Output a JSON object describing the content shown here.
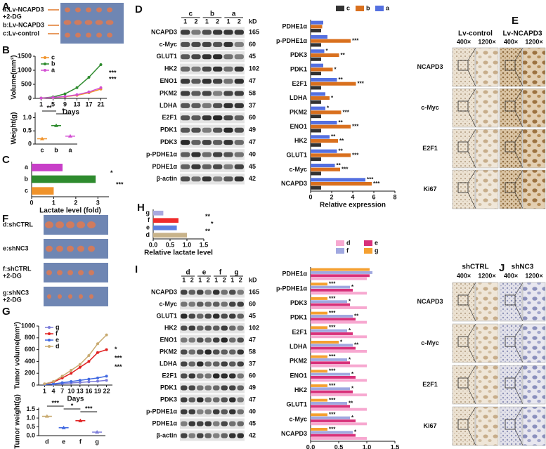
{
  "letters": [
    "A",
    "B",
    "C",
    "D",
    "E",
    "F",
    "G",
    "H",
    "I",
    "J"
  ],
  "photos": [
    {
      "labels": [
        [
          "a:Lv-NCAPD3",
          "+2-DG"
        ],
        [
          "b:Lv-NCAPD3"
        ],
        [
          "c:Lv-control"
        ]
      ]
    },
    {
      "labels": [
        [
          "d:shCTRL"
        ],
        [
          "e:shNC3"
        ],
        [
          "f:shCTRL",
          "+2-DG"
        ],
        [
          "g:shNC3",
          "+2-DG"
        ]
      ]
    }
  ],
  "blots": [
    {
      "groups": [
        "c",
        "b",
        "a"
      ],
      "lanes": [
        "1",
        "2"
      ],
      "unit": "kD",
      "proteins": [
        {
          "name": "NCAPD3",
          "kd": 165
        },
        {
          "name": "c-Myc",
          "kd": 60
        },
        {
          "name": "GLUT1",
          "kd": 45
        },
        {
          "name": "HK2",
          "kd": 102
        },
        {
          "name": "ENO1",
          "kd": 47
        },
        {
          "name": "PKM2",
          "kd": 58
        },
        {
          "name": "LDHA",
          "kd": 37
        },
        {
          "name": "E2F1",
          "kd": 60
        },
        {
          "name": "PDK1",
          "kd": 49
        },
        {
          "name": "PDK3",
          "kd": 47
        },
        {
          "name": "p-PDHE1α",
          "kd": 40
        },
        {
          "name": "PDHE1α",
          "kd": 45
        },
        {
          "name": "β-actin",
          "kd": 42
        }
      ]
    },
    {
      "groups": [
        "d",
        "e",
        "f",
        "g"
      ],
      "lanes": [
        "1",
        "2"
      ],
      "unit": "kD",
      "proteins": [
        {
          "name": "NCAPD3",
          "kd": 165
        },
        {
          "name": "c-Myc",
          "kd": 60
        },
        {
          "name": "GLUT1",
          "kd": 45
        },
        {
          "name": "HK2",
          "kd": 102
        },
        {
          "name": "ENO1",
          "kd": 47
        },
        {
          "name": "PKM2",
          "kd": 58
        },
        {
          "name": "LDHA",
          "kd": 37
        },
        {
          "name": "E2F1",
          "kd": 60
        },
        {
          "name": "PDK1",
          "kd": 49
        },
        {
          "name": "PDK3",
          "kd": 47
        },
        {
          "name": "p-PDHE1α",
          "kd": 40
        },
        {
          "name": "PDHE1α",
          "kd": 45
        },
        {
          "name": "β-actin",
          "kd": 42
        }
      ]
    }
  ],
  "ihc": [
    {
      "columns": [
        "Lv-control",
        "Lv-NCAPD3"
      ],
      "magnifications": [
        "400×",
        "1200×"
      ],
      "rows": [
        "NCAPD3",
        "c-Myc",
        "E2F1",
        "Ki67"
      ]
    },
    {
      "columns": [
        "shCTRL",
        "shNC3"
      ],
      "magnifications": [
        "400×",
        "1200×"
      ],
      "rows": [
        "NCAPD3",
        "c-Myc",
        "E2F1",
        "Ki67"
      ]
    }
  ],
  "chart_data": [
    {
      "type": "line",
      "ylabel": "Volume(mm³)",
      "xlabel": "Days",
      "x": [
        1,
        5,
        9,
        13,
        17,
        21
      ],
      "xlim": [
        -1,
        23
      ],
      "xticks": [
        1,
        5,
        9,
        13,
        17,
        21
      ],
      "ylim": [
        0,
        1500
      ],
      "yticks": [
        0,
        500,
        1000,
        1500
      ],
      "series": [
        {
          "name": "c",
          "color": "#f0932b",
          "values": [
            10,
            30,
            60,
            110,
            200,
            330
          ]
        },
        {
          "name": "b",
          "color": "#2e8b2e",
          "values": [
            10,
            50,
            160,
            380,
            750,
            1200
          ]
        },
        {
          "name": "a",
          "color": "#d34fd3",
          "values": [
            10,
            30,
            70,
            130,
            230,
            380
          ]
        }
      ],
      "annotations": [
        "***",
        "***"
      ]
    },
    {
      "type": "dot",
      "ylabel": "Weight(g)",
      "categories": [
        "c",
        "b",
        "a"
      ],
      "values": [
        0.2,
        0.7,
        0.3
      ],
      "colors": [
        "#f0932b",
        "#2e8b2e",
        "#d34fd3"
      ],
      "ylim": [
        0,
        1.2
      ],
      "yticks": [
        0,
        0.5,
        {
          "value": 1,
          "label": "1.0"
        }
      ],
      "annotations": [
        "**",
        "*"
      ]
    },
    {
      "type": "hbar",
      "xlabel": "Lactate level (fold)",
      "categories": [
        "a",
        "b",
        "c"
      ],
      "values": [
        1.4,
        2.9,
        1.0
      ],
      "colors": [
        "#c83fc8",
        "#2e8b2e",
        "#f0932b"
      ],
      "xlim": [
        0,
        3.5
      ],
      "xticks": [
        0,
        1,
        2,
        3
      ],
      "annotations": [
        "*",
        "***"
      ]
    },
    {
      "type": "grouped_hbar",
      "xlabel": "Relative expression",
      "categories": [
        "PDHE1α",
        "p-PDHE1α",
        "PDK3",
        "PDK1",
        "E2F1",
        "LDHA",
        "PKM2",
        "ENO1",
        "HK2",
        "GLUT1",
        "c-Myc",
        "NCAPD3"
      ],
      "xlim": [
        0,
        8
      ],
      "xticks": [
        0,
        2,
        4,
        6,
        8
      ],
      "series": [
        {
          "name": "c",
          "color": "#333333",
          "values": [
            1,
            1,
            1,
            1,
            1,
            1,
            1,
            1,
            1,
            1,
            1,
            1
          ],
          "stars": [
            null,
            null,
            null,
            null,
            null,
            null,
            null,
            null,
            null,
            null,
            null,
            null
          ]
        },
        {
          "name": "b",
          "color": "#d9701e",
          "values": [
            1.1,
            3.8,
            2.7,
            2.1,
            4.3,
            1.8,
            2.9,
            3.8,
            2.6,
            3.8,
            2.8,
            5.8
          ],
          "stars": [
            null,
            "***",
            "**",
            "*",
            "***",
            "*",
            "***",
            "***",
            "**",
            "***",
            "***",
            "***"
          ]
        },
        {
          "name": "a",
          "color": "#5470e0",
          "values": [
            1.2,
            1.6,
            1.3,
            1.2,
            2.5,
            1.4,
            1.4,
            2.5,
            1.8,
            2.5,
            2.3,
            5.2
          ],
          "stars": [
            null,
            null,
            "*",
            null,
            "**",
            null,
            "*",
            "**",
            "**",
            "**",
            "**",
            "***"
          ]
        }
      ]
    },
    {
      "type": "line",
      "ylabel": "Tumor volume(mm³)",
      "xlabel": "Days",
      "x": [
        1,
        4,
        7,
        10,
        13,
        16,
        19,
        22
      ],
      "xlim": [
        -1,
        24
      ],
      "xticks": [
        1,
        4,
        7,
        10,
        13,
        16,
        19,
        22
      ],
      "ylim": [
        0,
        1000
      ],
      "yticks": [
        0,
        200,
        400,
        600,
        800,
        1000
      ],
      "series": [
        {
          "name": "g",
          "color": "#7b7bd9",
          "values": [
            10,
            15,
            25,
            35,
            45,
            55,
            65,
            80
          ]
        },
        {
          "name": "f",
          "color": "#e02020",
          "values": [
            20,
            50,
            120,
            200,
            300,
            400,
            550,
            600
          ]
        },
        {
          "name": "e",
          "color": "#4169e1",
          "values": [
            10,
            20,
            40,
            60,
            80,
            100,
            120,
            150
          ]
        },
        {
          "name": "d",
          "color": "#c8aa70",
          "values": [
            20,
            60,
            150,
            250,
            350,
            500,
            700,
            850
          ]
        }
      ],
      "annotations": [
        "*",
        "***",
        "***"
      ]
    },
    {
      "type": "dot",
      "ylabel": "Tumor weight(g)",
      "categories": [
        "d",
        "e",
        "f",
        "g"
      ],
      "values": [
        1.1,
        0.45,
        0.85,
        0.2
      ],
      "colors": [
        "#c8aa70",
        "#4169e1",
        "#e02020",
        "#7b7bd9"
      ],
      "ylim": [
        0,
        1.6
      ],
      "yticks": [
        {
          "value": 0,
          "label": "0.0"
        },
        0.5,
        {
          "value": 1,
          "label": "1.0"
        },
        1.5
      ],
      "annotations": [
        "***",
        "*",
        "***"
      ]
    },
    {
      "type": "hbar",
      "xlabel": "Relative lactate level",
      "categories": [
        "g",
        "f",
        "e",
        "d"
      ],
      "values": [
        0.3,
        0.75,
        0.7,
        1.0
      ],
      "colors": [
        "#a9a9e0",
        "#ef2b2b",
        "#5b7fe0",
        "#c8b38a"
      ],
      "xlim": [
        0,
        1.5
      ],
      "xticks": [
        {
          "value": 0,
          "label": "0.0"
        },
        0.5,
        {
          "value": 1,
          "label": "1.0"
        },
        1.5
      ],
      "annotations": [
        "**",
        "*",
        "**"
      ]
    },
    {
      "type": "grouped_hbar",
      "xlabel": "Relative expression",
      "categories": [
        "PDHE1α",
        "p-PDHE1α",
        "PDK3",
        "PDK1",
        "E2F1",
        "LDHA",
        "PKM2",
        "ENO1",
        "HK2",
        "GLUT1",
        "c-Myc",
        "NCAPD3"
      ],
      "xlim": [
        0,
        1.5
      ],
      "xticks": [
        {
          "value": 0,
          "label": "0.0"
        },
        0.5,
        {
          "value": 1,
          "label": "1.0"
        },
        1.5
      ],
      "series": [
        {
          "name": "d",
          "color": "#f7a8d0",
          "values": [
            1,
            1,
            1,
            1,
            1,
            1,
            1,
            1,
            1,
            1,
            1,
            1
          ],
          "stars": [
            null,
            null,
            null,
            null,
            null,
            null,
            null,
            null,
            null,
            null,
            null,
            null
          ]
        },
        {
          "name": "e",
          "color": "#d8307a",
          "values": [
            1.05,
            0.75,
            0.7,
            0.8,
            0.75,
            0.8,
            0.7,
            0.8,
            0.75,
            0.7,
            0.8,
            0.8
          ],
          "stars": [
            null,
            null,
            null,
            null,
            null,
            null,
            null,
            null,
            null,
            null,
            null,
            null
          ]
        },
        {
          "name": "f",
          "color": "#a0a8e0",
          "values": [
            1.1,
            0.7,
            0.65,
            0.75,
            0.65,
            0.75,
            0.65,
            0.7,
            0.7,
            0.65,
            0.7,
            0.75
          ],
          "stars": [
            null,
            "*",
            "*",
            "**",
            "*",
            "**",
            "*",
            "*",
            "*",
            "**",
            "*",
            "*"
          ]
        },
        {
          "name": "g",
          "color": "#f5a030",
          "values": [
            1.05,
            0.3,
            0.3,
            0.3,
            0.3,
            0.5,
            0.3,
            0.3,
            0.3,
            0.3,
            0.3,
            0.3
          ],
          "stars": [
            null,
            "***",
            "***",
            "***",
            "***",
            "*",
            "***",
            "***",
            "***",
            "***",
            "***",
            "***"
          ]
        }
      ]
    }
  ]
}
